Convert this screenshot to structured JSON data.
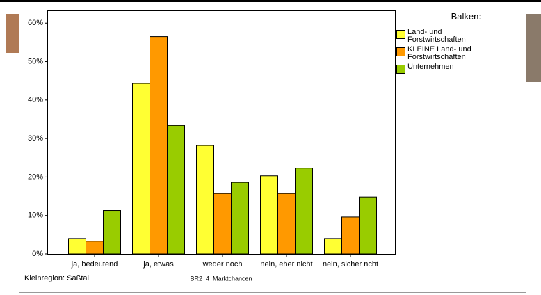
{
  "chart_data": {
    "type": "bar",
    "categories": [
      "ja, bedeutend",
      "ja, etwas",
      "weder noch",
      "nein, eher nicht",
      "nein, sicher ncht"
    ],
    "series": [
      {
        "name": "Land- und Forstwirtschaften",
        "color": "#ffff33",
        "values": [
          4,
          44.3,
          28.2,
          20.3,
          4
        ]
      },
      {
        "name": "KLEINE Land- und Forstwirtschaften",
        "color": "#ff9900",
        "values": [
          3.3,
          56.5,
          15.7,
          15.7,
          9.6
        ]
      },
      {
        "name": "Unternehmen",
        "color": "#99cc00",
        "values": [
          11.3,
          33.4,
          18.6,
          22.3,
          14.8
        ]
      }
    ],
    "ylim": [
      0,
      63.3
    ],
    "yticks": [
      {
        "value": 0,
        "label": "0%"
      },
      {
        "value": 10,
        "label": "10%"
      },
      {
        "value": 20,
        "label": "20%"
      },
      {
        "value": 30,
        "label": "30%"
      },
      {
        "value": 40,
        "label": "40%"
      },
      {
        "value": 50,
        "label": "50%"
      },
      {
        "value": 60,
        "label": "60%"
      }
    ],
    "legend_title": "Balken:",
    "xlabel": "BR2_4_Marktchancen",
    "footnote": "Kleinregion: Saßtal"
  }
}
